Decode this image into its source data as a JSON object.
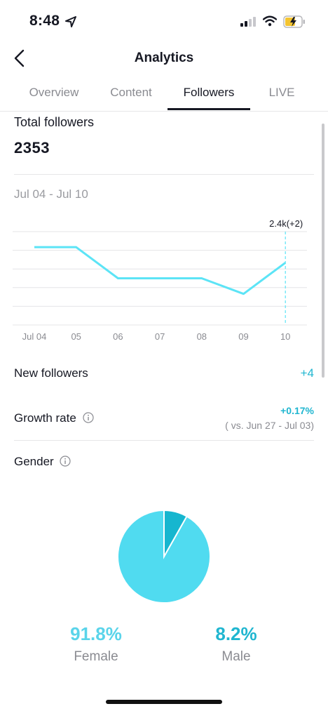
{
  "status_bar": {
    "time": "8:48"
  },
  "header": {
    "title": "Analytics",
    "back_icon": "chevron-left-icon"
  },
  "tabs": [
    {
      "label": "Overview",
      "active": false
    },
    {
      "label": "Content",
      "active": false
    },
    {
      "label": "Followers",
      "active": true
    },
    {
      "label": "LIVE",
      "active": false
    }
  ],
  "total_followers": {
    "label": "Total followers",
    "value": "2353"
  },
  "date_range": "Jul 04 - Jul 10",
  "chart_data": {
    "type": "line",
    "categories": [
      "Jul 04",
      "05",
      "06",
      "07",
      "08",
      "09",
      "10"
    ],
    "values": [
      2355,
      2355,
      2351,
      2351,
      2351,
      2349,
      2353
    ],
    "ylim": [
      2345,
      2357
    ],
    "grid": true,
    "color": "#5ce4f6",
    "highlight_label": "2.4k(+2)"
  },
  "new_followers": {
    "label": "New followers",
    "value": "+4"
  },
  "growth_rate": {
    "label": "Growth rate",
    "value": "+0.17%",
    "compare": "( vs. Jun 27 - Jul 03)"
  },
  "gender": {
    "label": "Gender",
    "female": {
      "pct": "91.8%",
      "name": "Female",
      "value": 91.8,
      "color": "#50dbf0"
    },
    "male": {
      "pct": "8.2%",
      "name": "Male",
      "value": 8.2,
      "color": "#16b6cf"
    }
  }
}
